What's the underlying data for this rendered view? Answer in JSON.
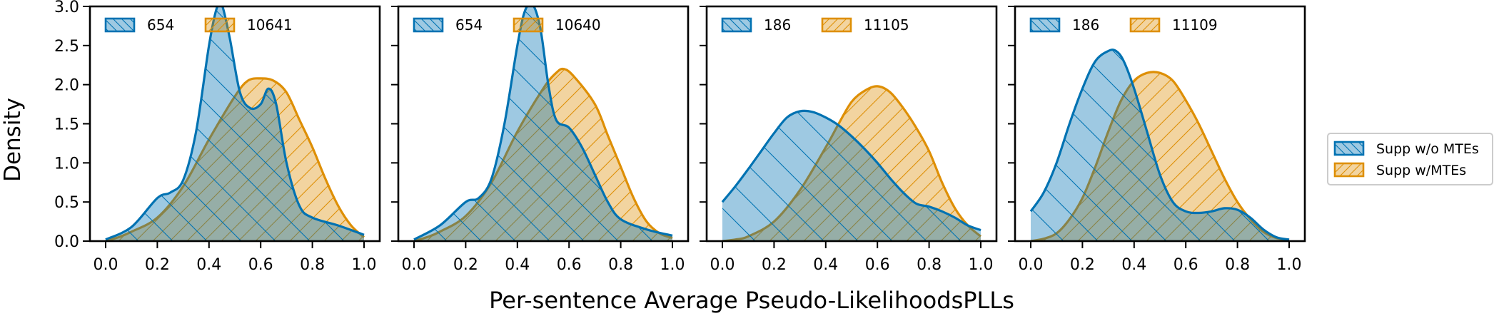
{
  "chart_data": {
    "type": "area",
    "kind": "kde-density",
    "xlabel": "Per-sentence Average Pseudo-LikelihoodsPLLs",
    "ylabel": "Density",
    "xlim": [
      0.0,
      1.0
    ],
    "ylim": [
      0.0,
      3.0
    ],
    "xticks": [
      "0.0",
      "0.2",
      "0.4",
      "0.6",
      "0.8",
      "1.0"
    ],
    "yticks": [
      "0.0",
      "0.5",
      "1.0",
      "1.5",
      "2.0",
      "2.5",
      "3.0"
    ],
    "series_colors": {
      "without": "#0072b2",
      "with": "#de8f05"
    },
    "legend": {
      "placement": "right",
      "entries": [
        {
          "label": "Supp w/o MTEs",
          "color": "#0072b2",
          "hatch": "backslash"
        },
        {
          "label": "Supp w/MTEs",
          "color": "#de8f05",
          "hatch": "slash"
        }
      ]
    },
    "panels": [
      {
        "legend": [
          "654",
          "10641"
        ],
        "series": [
          {
            "name": "Supp w/o MTEs",
            "x": [
              0.0,
              0.1,
              0.2,
              0.25,
              0.3,
              0.35,
              0.4,
              0.43,
              0.45,
              0.48,
              0.52,
              0.56,
              0.6,
              0.63,
              0.66,
              0.7,
              0.75,
              0.8,
              0.9,
              1.0
            ],
            "y": [
              0.02,
              0.18,
              0.55,
              0.62,
              0.78,
              1.4,
              2.5,
              2.98,
              3.02,
              2.6,
              1.9,
              1.7,
              1.75,
              1.95,
              1.75,
              1.0,
              0.45,
              0.3,
              0.2,
              0.08
            ]
          },
          {
            "name": "Supp w/MTEs",
            "x": [
              0.0,
              0.05,
              0.1,
              0.2,
              0.3,
              0.4,
              0.5,
              0.55,
              0.6,
              0.65,
              0.7,
              0.75,
              0.8,
              0.85,
              0.9,
              0.95,
              1.0
            ],
            "y": [
              0.0,
              0.05,
              0.12,
              0.3,
              0.7,
              1.3,
              1.85,
              2.05,
              2.08,
              2.05,
              1.9,
              1.55,
              1.2,
              0.8,
              0.45,
              0.2,
              0.05
            ]
          }
        ]
      },
      {
        "legend": [
          "654",
          "10640"
        ],
        "series": [
          {
            "name": "Supp w/o MTEs",
            "x": [
              0.0,
              0.1,
              0.2,
              0.25,
              0.3,
              0.35,
              0.4,
              0.43,
              0.46,
              0.49,
              0.52,
              0.55,
              0.6,
              0.65,
              0.7,
              0.75,
              0.8,
              0.9,
              1.0
            ],
            "y": [
              0.02,
              0.2,
              0.5,
              0.55,
              0.8,
              1.5,
              2.5,
              2.95,
              3.02,
              2.7,
              2.0,
              1.55,
              1.45,
              1.2,
              0.85,
              0.5,
              0.28,
              0.15,
              0.07
            ]
          },
          {
            "name": "Supp w/MTEs",
            "x": [
              0.0,
              0.05,
              0.1,
              0.2,
              0.3,
              0.4,
              0.5,
              0.55,
              0.58,
              0.62,
              0.7,
              0.75,
              0.8,
              0.85,
              0.9,
              0.95,
              1.0
            ],
            "y": [
              0.0,
              0.05,
              0.12,
              0.32,
              0.75,
              1.4,
              1.95,
              2.15,
              2.2,
              2.1,
              1.75,
              1.35,
              0.95,
              0.55,
              0.25,
              0.1,
              0.04
            ]
          }
        ]
      },
      {
        "legend": [
          "186",
          "11105"
        ],
        "series": [
          {
            "name": "Supp w/o MTEs",
            "x": [
              0.0,
              0.05,
              0.1,
              0.15,
              0.2,
              0.25,
              0.3,
              0.35,
              0.4,
              0.45,
              0.5,
              0.55,
              0.6,
              0.65,
              0.7,
              0.75,
              0.8,
              0.85,
              0.9,
              0.95,
              1.0
            ],
            "y": [
              0.5,
              0.7,
              0.92,
              1.15,
              1.38,
              1.58,
              1.66,
              1.65,
              1.58,
              1.48,
              1.34,
              1.18,
              1.0,
              0.8,
              0.62,
              0.48,
              0.44,
              0.38,
              0.3,
              0.2,
              0.14
            ]
          },
          {
            "name": "Supp w/MTEs",
            "x": [
              0.0,
              0.05,
              0.1,
              0.2,
              0.3,
              0.4,
              0.45,
              0.5,
              0.55,
              0.6,
              0.65,
              0.7,
              0.75,
              0.8,
              0.85,
              0.9,
              0.95,
              1.0
            ],
            "y": [
              0.0,
              0.02,
              0.06,
              0.25,
              0.65,
              1.2,
              1.5,
              1.78,
              1.92,
              1.98,
              1.9,
              1.7,
              1.45,
              1.15,
              0.75,
              0.42,
              0.2,
              0.06
            ]
          }
        ]
      },
      {
        "legend": [
          "186",
          "11109"
        ],
        "series": [
          {
            "name": "Supp w/o MTEs",
            "x": [
              0.0,
              0.05,
              0.1,
              0.15,
              0.2,
              0.25,
              0.3,
              0.33,
              0.36,
              0.4,
              0.45,
              0.5,
              0.55,
              0.6,
              0.65,
              0.7,
              0.75,
              0.8,
              0.85,
              0.9,
              0.95,
              1.0
            ],
            "y": [
              0.38,
              0.62,
              1.0,
              1.5,
              1.95,
              2.3,
              2.43,
              2.43,
              2.3,
              1.95,
              1.4,
              0.85,
              0.5,
              0.38,
              0.36,
              0.38,
              0.42,
              0.4,
              0.3,
              0.15,
              0.05,
              0.02
            ]
          },
          {
            "name": "Supp w/MTEs",
            "x": [
              0.0,
              0.05,
              0.1,
              0.15,
              0.2,
              0.25,
              0.3,
              0.35,
              0.4,
              0.45,
              0.5,
              0.55,
              0.6,
              0.65,
              0.7,
              0.75,
              0.8,
              0.85,
              0.9,
              0.95,
              1.0
            ],
            "y": [
              0.0,
              0.03,
              0.1,
              0.28,
              0.55,
              0.95,
              1.4,
              1.8,
              2.05,
              2.15,
              2.15,
              2.05,
              1.8,
              1.5,
              1.15,
              0.8,
              0.5,
              0.28,
              0.12,
              0.04,
              0.01
            ]
          }
        ]
      }
    ]
  }
}
